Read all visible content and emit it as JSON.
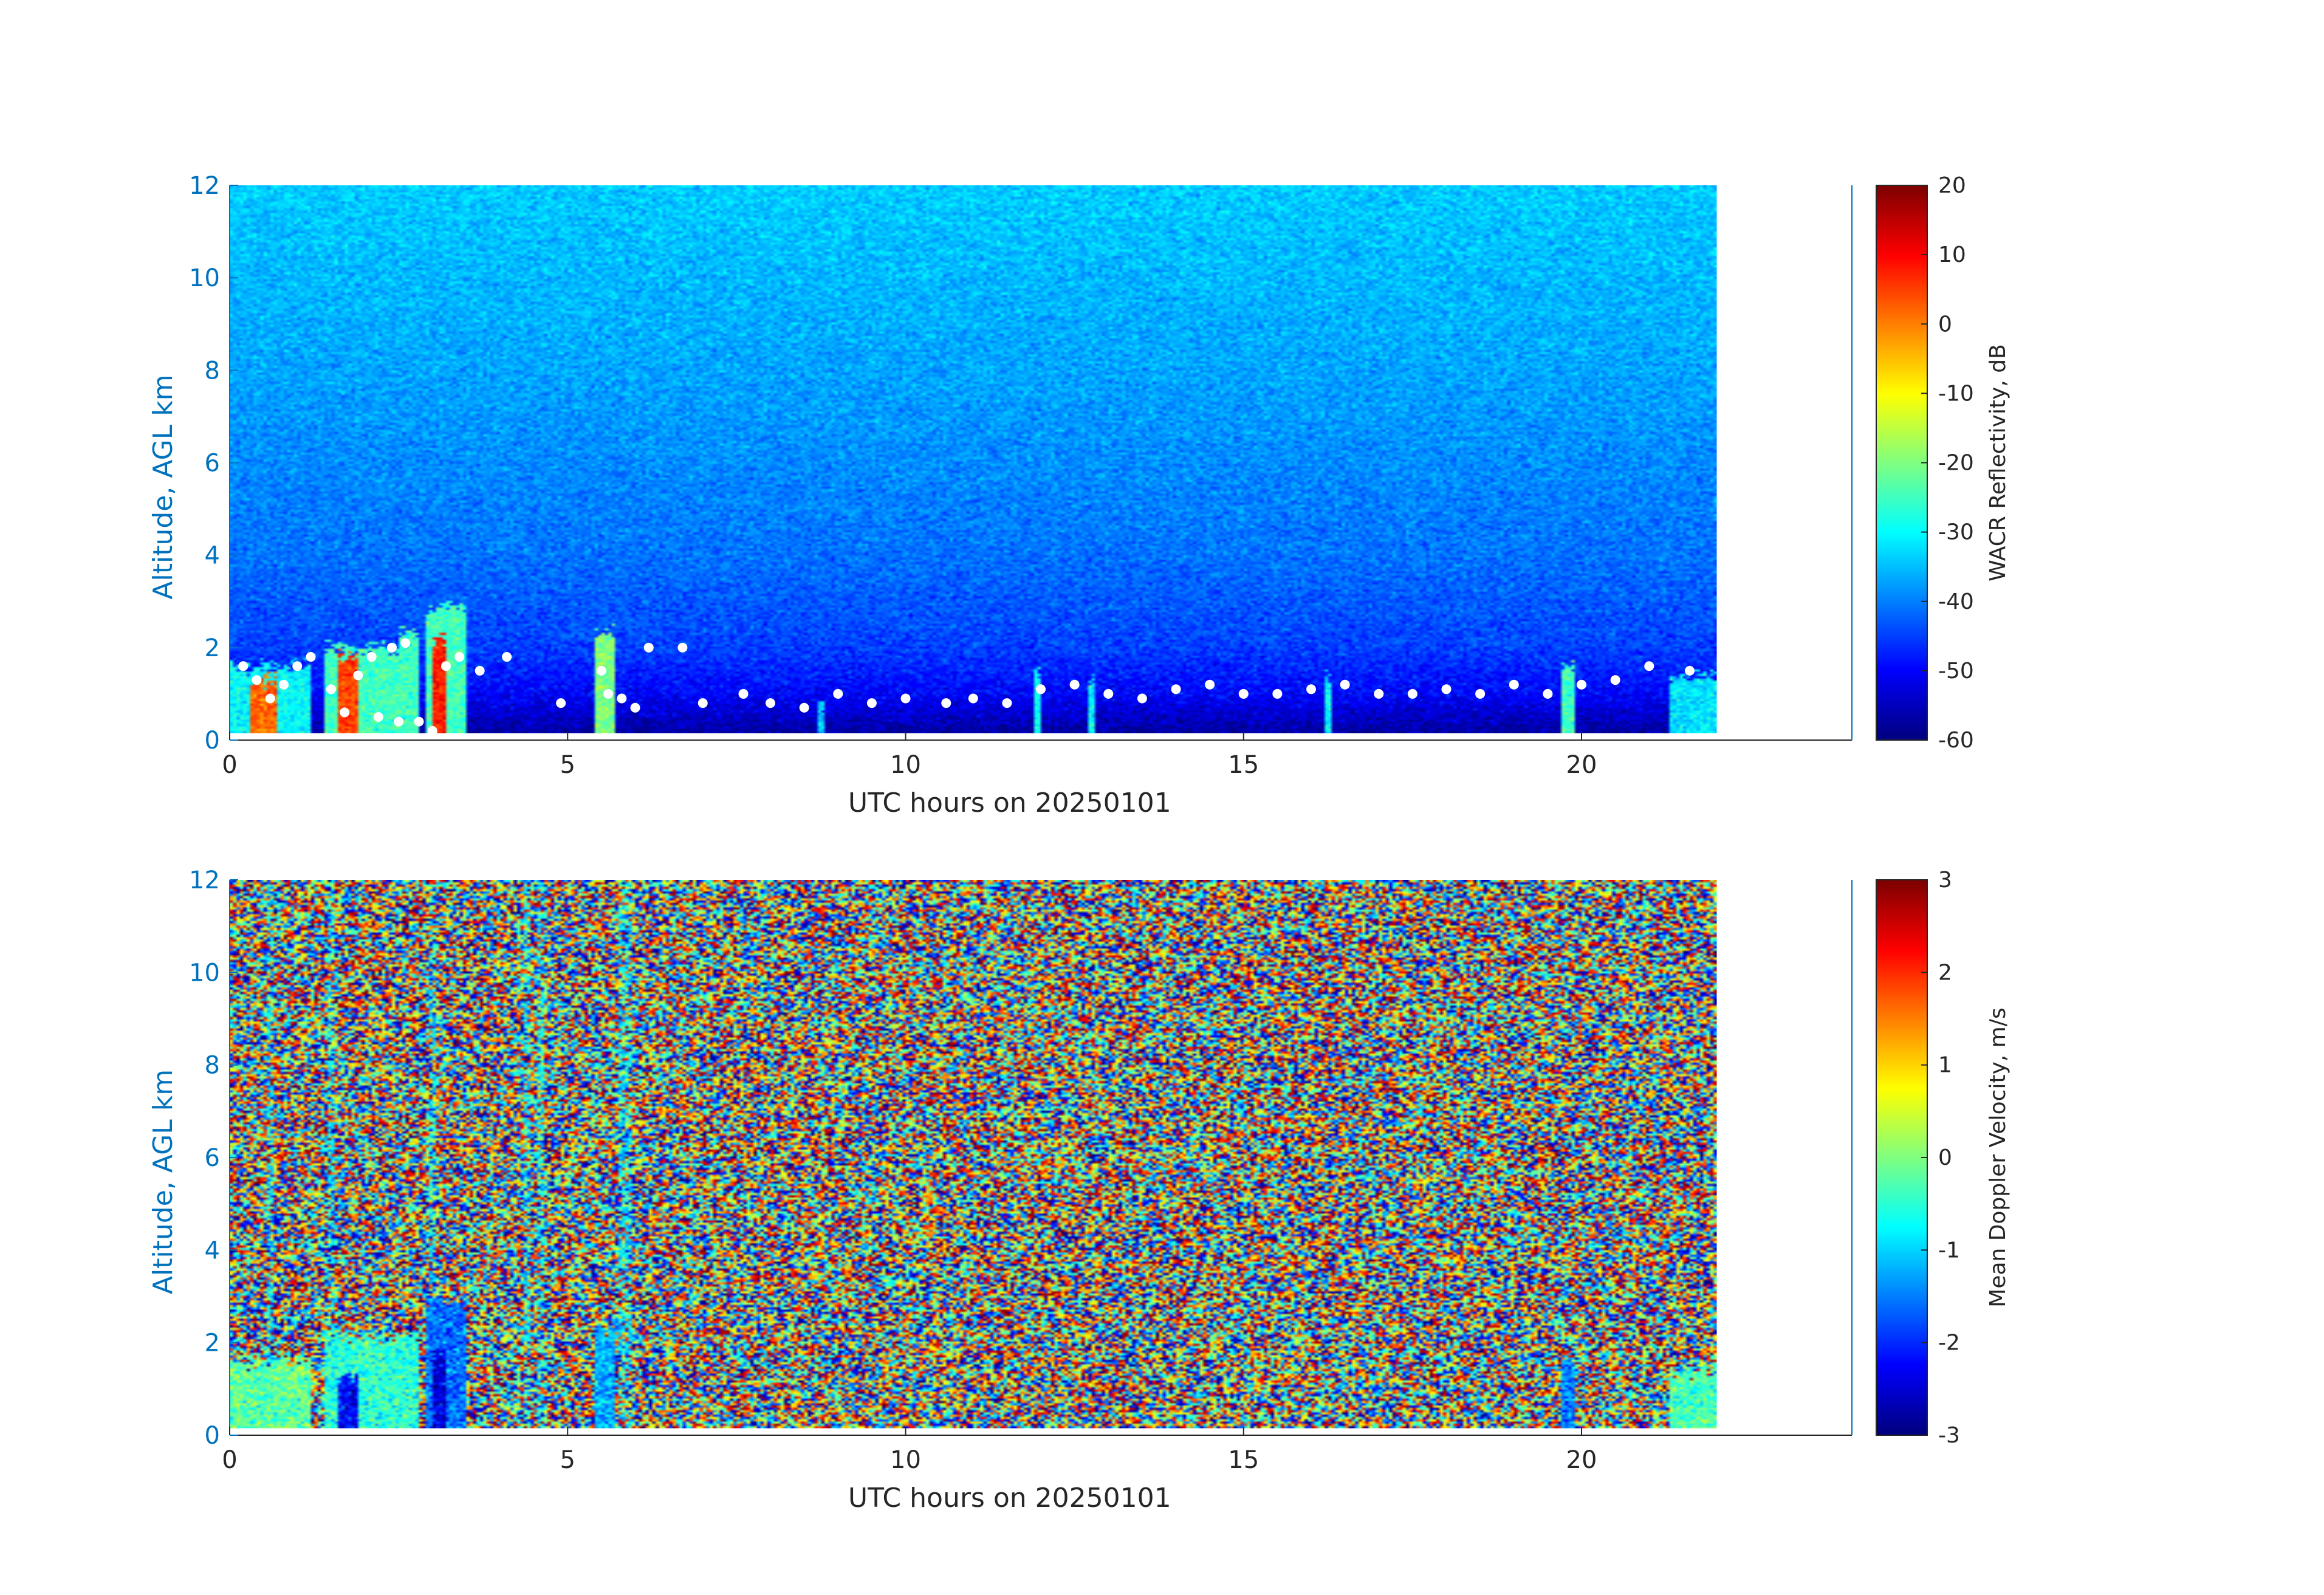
{
  "chart_data": [
    {
      "type": "heatmap",
      "title": "",
      "xlabel": "UTC hours on 20250101",
      "ylabel": "Altitude, AGL km",
      "xlim": [
        0,
        24
      ],
      "ylim": [
        0,
        12
      ],
      "data_x_range": [
        0,
        22
      ],
      "data_y_range": [
        0.15,
        12
      ],
      "xticks": [
        0,
        5,
        10,
        15,
        20
      ],
      "yticks": [
        0,
        2,
        4,
        6,
        8,
        10,
        12
      ],
      "colormap": "jet",
      "colorbar": {
        "label": "WACR Reflectivity, dB",
        "range": [
          -60,
          20
        ],
        "ticks": [
          -60,
          -50,
          -40,
          -30,
          -20,
          -10,
          0,
          10,
          20
        ]
      },
      "background_trend": {
        "altitude_km": [
          0.2,
          1,
          2,
          4,
          8,
          12
        ],
        "value_db": [
          -57,
          -50,
          -45,
          -41,
          -37,
          -34
        ]
      },
      "cloud_features": [
        {
          "x_start": 0.0,
          "x_end": 1.2,
          "y_top": 1.8,
          "value": -30
        },
        {
          "x_start": 0.3,
          "x_end": 0.7,
          "y_top": 1.5,
          "value": 2
        },
        {
          "x_start": 1.4,
          "x_end": 2.5,
          "y_top": 2.2,
          "value": -25
        },
        {
          "x_start": 1.6,
          "x_end": 1.9,
          "y_top": 2.0,
          "value": 5
        },
        {
          "x_start": 2.5,
          "x_end": 2.8,
          "y_top": 2.5,
          "value": -25
        },
        {
          "x_start": 2.9,
          "x_end": 3.5,
          "y_top": 3.1,
          "value": -25
        },
        {
          "x_start": 3.0,
          "x_end": 3.2,
          "y_top": 2.4,
          "value": 8
        },
        {
          "x_start": 5.4,
          "x_end": 5.7,
          "y_top": 2.5,
          "value": -20
        },
        {
          "x_start": 8.7,
          "x_end": 8.8,
          "y_top": 1.0,
          "value": -35
        },
        {
          "x_start": 11.9,
          "x_end": 12.0,
          "y_top": 1.7,
          "value": -30
        },
        {
          "x_start": 12.7,
          "x_end": 12.8,
          "y_top": 1.5,
          "value": -30
        },
        {
          "x_start": 16.2,
          "x_end": 16.3,
          "y_top": 1.6,
          "value": -30
        },
        {
          "x_start": 19.7,
          "x_end": 19.9,
          "y_top": 1.8,
          "value": -25
        },
        {
          "x_start": 21.3,
          "x_end": 22.0,
          "y_top": 1.6,
          "value": -32
        }
      ],
      "cloud_base_markers": [
        {
          "x": 0.2,
          "y": 1.6
        },
        {
          "x": 0.4,
          "y": 1.3
        },
        {
          "x": 0.6,
          "y": 0.9
        },
        {
          "x": 0.8,
          "y": 1.2
        },
        {
          "x": 1.0,
          "y": 1.6
        },
        {
          "x": 1.2,
          "y": 1.8
        },
        {
          "x": 1.5,
          "y": 1.1
        },
        {
          "x": 1.7,
          "y": 0.6
        },
        {
          "x": 1.9,
          "y": 1.4
        },
        {
          "x": 2.1,
          "y": 1.8
        },
        {
          "x": 2.4,
          "y": 2.0
        },
        {
          "x": 2.6,
          "y": 2.1
        },
        {
          "x": 2.2,
          "y": 0.5
        },
        {
          "x": 2.5,
          "y": 0.4
        },
        {
          "x": 2.8,
          "y": 0.4
        },
        {
          "x": 3.0,
          "y": 0.2
        },
        {
          "x": 3.2,
          "y": 1.6
        },
        {
          "x": 3.4,
          "y": 1.8
        },
        {
          "x": 3.7,
          "y": 1.5
        },
        {
          "x": 4.1,
          "y": 1.8
        },
        {
          "x": 4.9,
          "y": 0.8
        },
        {
          "x": 5.5,
          "y": 1.5
        },
        {
          "x": 5.6,
          "y": 1.0
        },
        {
          "x": 5.8,
          "y": 0.9
        },
        {
          "x": 6.0,
          "y": 0.7
        },
        {
          "x": 6.2,
          "y": 2.0
        },
        {
          "x": 6.7,
          "y": 2.0
        },
        {
          "x": 7.0,
          "y": 0.8
        },
        {
          "x": 7.6,
          "y": 1.0
        },
        {
          "x": 8.0,
          "y": 0.8
        },
        {
          "x": 8.5,
          "y": 0.7
        },
        {
          "x": 9.0,
          "y": 1.0
        },
        {
          "x": 9.5,
          "y": 0.8
        },
        {
          "x": 10.0,
          "y": 0.9
        },
        {
          "x": 10.6,
          "y": 0.8
        },
        {
          "x": 11.0,
          "y": 0.9
        },
        {
          "x": 11.5,
          "y": 0.8
        },
        {
          "x": 12.0,
          "y": 1.1
        },
        {
          "x": 12.5,
          "y": 1.2
        },
        {
          "x": 13.0,
          "y": 1.0
        },
        {
          "x": 13.5,
          "y": 0.9
        },
        {
          "x": 14.0,
          "y": 1.1
        },
        {
          "x": 14.5,
          "y": 1.2
        },
        {
          "x": 15.0,
          "y": 1.0
        },
        {
          "x": 15.5,
          "y": 1.0
        },
        {
          "x": 16.0,
          "y": 1.1
        },
        {
          "x": 16.5,
          "y": 1.2
        },
        {
          "x": 17.0,
          "y": 1.0
        },
        {
          "x": 17.5,
          "y": 1.0
        },
        {
          "x": 18.0,
          "y": 1.1
        },
        {
          "x": 18.5,
          "y": 1.0
        },
        {
          "x": 19.0,
          "y": 1.2
        },
        {
          "x": 19.5,
          "y": 1.0
        },
        {
          "x": 20.0,
          "y": 1.2
        },
        {
          "x": 20.5,
          "y": 1.3
        },
        {
          "x": 21.0,
          "y": 1.6
        },
        {
          "x": 21.6,
          "y": 1.5
        }
      ]
    },
    {
      "type": "heatmap",
      "title": "",
      "xlabel": "UTC hours on 20250101",
      "ylabel": "Altitude, AGL km",
      "xlim": [
        0,
        24
      ],
      "ylim": [
        0,
        12
      ],
      "data_x_range": [
        0,
        22
      ],
      "data_y_range": [
        0.15,
        12
      ],
      "xticks": [
        0,
        5,
        10,
        15,
        20
      ],
      "yticks": [
        0,
        2,
        4,
        6,
        8,
        10,
        12
      ],
      "colormap": "jet",
      "colorbar": {
        "label": "Mean Doppler Velocity, m/s",
        "range": [
          -3,
          3
        ],
        "ticks": [
          -3,
          -2,
          -1,
          0,
          1,
          2,
          3
        ]
      },
      "background": "uniform random noise over [-3, 3]",
      "cloud_features": [
        {
          "x_start": 0.0,
          "x_end": 1.2,
          "y_top": 1.8,
          "value": -0.2
        },
        {
          "x_start": 1.4,
          "x_end": 2.8,
          "y_top": 2.3,
          "value": -0.5
        },
        {
          "x_start": 1.6,
          "x_end": 1.9,
          "y_top": 1.5,
          "value": -2.2
        },
        {
          "x_start": 2.9,
          "x_end": 3.5,
          "y_top": 3.1,
          "value": -1.6
        },
        {
          "x_start": 3.0,
          "x_end": 3.2,
          "y_top": 2.0,
          "value": -2.4
        },
        {
          "x_start": 5.4,
          "x_end": 5.7,
          "y_top": 2.5,
          "value": -1.2
        },
        {
          "x_start": 19.7,
          "x_end": 19.9,
          "y_top": 1.8,
          "value": -1.5
        },
        {
          "x_start": 21.3,
          "x_end": 22.0,
          "y_top": 1.6,
          "value": -0.3
        }
      ],
      "noisy_stripes_x": [
        0.6,
        1.5,
        3.0,
        4.4,
        4.6,
        5.8,
        5.9
      ]
    }
  ]
}
